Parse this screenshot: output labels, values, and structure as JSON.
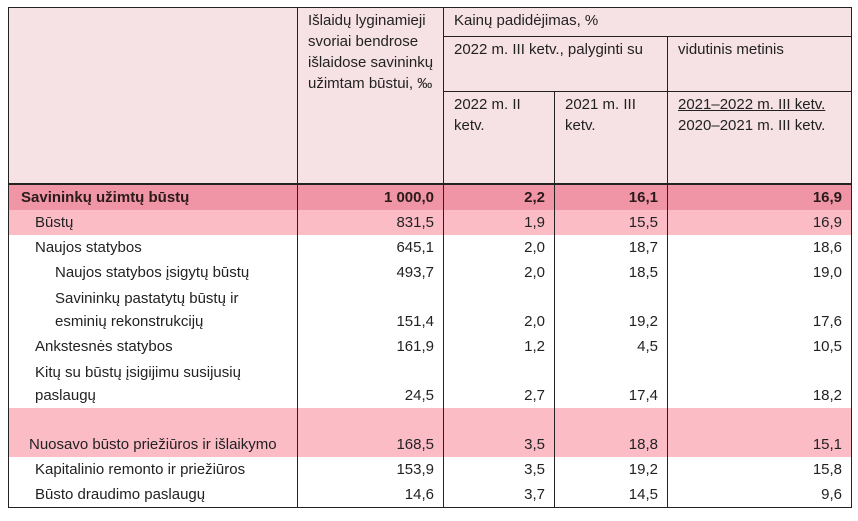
{
  "header": {
    "weights": "Išlaidų lyginamieji svoriai bendrose išlaidose savininkų užimtam būstui, ‰",
    "price_increase": "Kainų padidėjimas, %",
    "compared_with": "2022 m. III ketv., palyginti su",
    "annual_average": "vidutinis metinis",
    "q2_2022": "2022 m. II ketv.",
    "q3_2021": "2021 m. III ketv.",
    "avg_period_top": "2021–2022 m. III ketv.",
    "avg_period_bottom": "2020–2021 m. III ketv."
  },
  "rows": [
    {
      "label": "Savininkų užimtų būstų",
      "weight": "1 000,0",
      "q2_2022": "2,2",
      "q3_2021": "16,1",
      "avg": "16,9"
    },
    {
      "label": "Būstų",
      "weight": "831,5",
      "q2_2022": "1,9",
      "q3_2021": "15,5",
      "avg": "16,9"
    },
    {
      "label": "Naujos statybos",
      "weight": "645,1",
      "q2_2022": "2,0",
      "q3_2021": "18,7",
      "avg": "18,6"
    },
    {
      "label": "Naujos statybos įsigytų būstų",
      "weight": "493,7",
      "q2_2022": "2,0",
      "q3_2021": "18,5",
      "avg": "19,0"
    },
    {
      "label": "Savininkų pastatytų būstų ir esminių rekonstrukcijų",
      "weight": "151,4",
      "q2_2022": "2,0",
      "q3_2021": "19,2",
      "avg": "17,6"
    },
    {
      "label": "Ankstesnės statybos",
      "weight": "161,9",
      "q2_2022": "1,2",
      "q3_2021": "4,5",
      "avg": "10,5"
    },
    {
      "label": "Kitų su būstų įsigijimu susijusių paslaugų",
      "weight": "24,5",
      "q2_2022": "2,7",
      "q3_2021": "17,4",
      "avg": "18,2"
    },
    {
      "label": "Nuosavo būsto priežiūros ir išlaikymo",
      "weight": "168,5",
      "q2_2022": "3,5",
      "q3_2021": "18,8",
      "avg": "15,1"
    },
    {
      "label": "Kapitalinio remonto ir priežiūros",
      "weight": "153,9",
      "q2_2022": "3,5",
      "q3_2021": "19,2",
      "avg": "15,8"
    },
    {
      "label": "Būsto draudimo paslaugų",
      "weight": "14,6",
      "q2_2022": "3,7",
      "q3_2021": "14,5",
      "avg": "9,6"
    }
  ]
}
